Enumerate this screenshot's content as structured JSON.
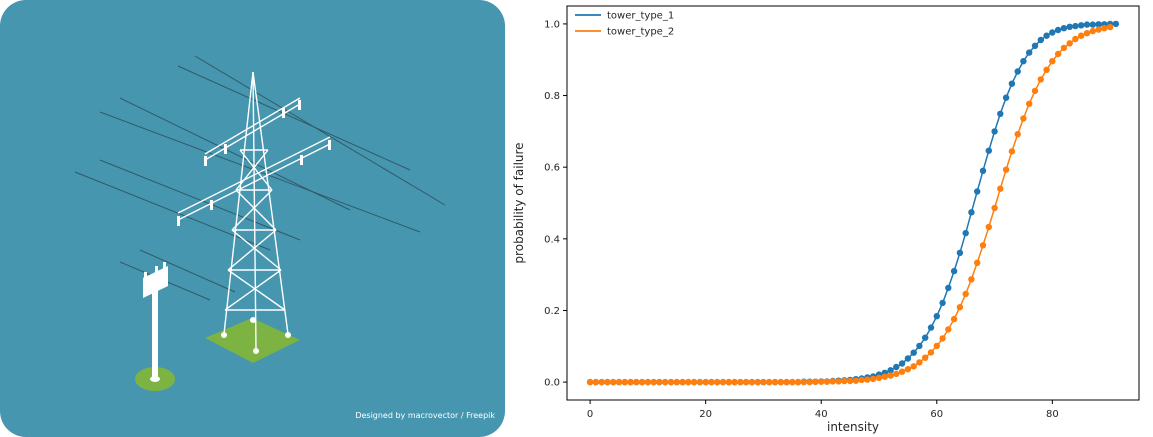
{
  "illustration": {
    "subject": "power-transmission-tower-icon",
    "credit": "Designed by macrovector / Freepik",
    "colors": {
      "background": "#4596ae",
      "tower": "#ffffff",
      "ground": "#7cb342",
      "wire": "#2f4f5e"
    }
  },
  "chart_data": {
    "type": "line",
    "title": "",
    "xlabel": "intensity",
    "ylabel": "probability of failure",
    "xlim": [
      -4,
      95
    ],
    "ylim": [
      -0.05,
      1.05
    ],
    "xticks": [
      0,
      20,
      40,
      60,
      80
    ],
    "yticks": [
      0.0,
      0.2,
      0.4,
      0.6,
      0.8,
      1.0
    ],
    "xtick_labels": [
      "0",
      "20",
      "40",
      "60",
      "80"
    ],
    "ytick_labels": [
      "0.0",
      "0.2",
      "0.4",
      "0.6",
      "0.8",
      "1.0"
    ],
    "grid": false,
    "legend": "top-left",
    "markers": true,
    "series": [
      {
        "name": "tower_type_1",
        "color": "#1f77b4",
        "x": [
          0,
          1,
          2,
          3,
          4,
          5,
          6,
          7,
          8,
          9,
          10,
          11,
          12,
          13,
          14,
          15,
          16,
          17,
          18,
          19,
          20,
          21,
          22,
          23,
          24,
          25,
          26,
          27,
          28,
          29,
          30,
          31,
          32,
          33,
          34,
          35,
          36,
          37,
          38,
          39,
          40,
          41,
          42,
          43,
          44,
          45,
          46,
          47,
          48,
          49,
          50,
          51,
          52,
          53,
          54,
          55,
          56,
          57,
          58,
          59,
          60,
          61,
          62,
          63,
          64,
          65,
          66,
          67,
          68,
          69,
          70,
          71,
          72,
          73,
          74,
          75,
          76,
          77,
          78,
          79,
          80,
          81,
          82,
          83,
          84,
          85,
          86,
          87,
          88,
          89,
          90,
          91
        ],
        "y": [
          0,
          0,
          0,
          0,
          0,
          0,
          0,
          0,
          0,
          0,
          0,
          0,
          0,
          0,
          0,
          0,
          0,
          0,
          0,
          0,
          0,
          0,
          0,
          0,
          0,
          0,
          0,
          0,
          0,
          0,
          0,
          0,
          0,
          0,
          0,
          0,
          0,
          0.001,
          0.001,
          0.001,
          0.002,
          0.002,
          0.003,
          0.004,
          0.005,
          0.006,
          0.008,
          0.01,
          0.013,
          0.016,
          0.021,
          0.026,
          0.033,
          0.042,
          0.052,
          0.066,
          0.082,
          0.101,
          0.124,
          0.152,
          0.184,
          0.221,
          0.263,
          0.31,
          0.361,
          0.416,
          0.474,
          0.532,
          0.59,
          0.646,
          0.7,
          0.749,
          0.794,
          0.833,
          0.867,
          0.896,
          0.92,
          0.939,
          0.955,
          0.967,
          0.976,
          0.983,
          0.988,
          0.992,
          0.994,
          0.996,
          0.998,
          0.998,
          0.999,
          0.999,
          1,
          1
        ]
      },
      {
        "name": "tower_type_2",
        "color": "#ff7f0e",
        "x": [
          0,
          1,
          2,
          3,
          4,
          5,
          6,
          7,
          8,
          9,
          10,
          11,
          12,
          13,
          14,
          15,
          16,
          17,
          18,
          19,
          20,
          21,
          22,
          23,
          24,
          25,
          26,
          27,
          28,
          29,
          30,
          31,
          32,
          33,
          34,
          35,
          36,
          37,
          38,
          39,
          40,
          41,
          42,
          43,
          44,
          45,
          46,
          47,
          48,
          49,
          50,
          51,
          52,
          53,
          54,
          55,
          56,
          57,
          58,
          59,
          60,
          61,
          62,
          63,
          64,
          65,
          66,
          67,
          68,
          69,
          70,
          71,
          72,
          73,
          74,
          75,
          76,
          77,
          78,
          79,
          80,
          81,
          82,
          83,
          84,
          85,
          86,
          87,
          88,
          89,
          90
        ],
        "y": [
          0,
          0,
          0,
          0,
          0,
          0,
          0,
          0,
          0,
          0,
          0,
          0,
          0,
          0,
          0,
          0,
          0,
          0,
          0,
          0,
          0,
          0,
          0,
          0,
          0,
          0,
          0,
          0,
          0,
          0,
          0,
          0,
          0,
          0,
          0,
          0,
          0,
          0,
          0,
          0.001,
          0.001,
          0.001,
          0.002,
          0.002,
          0.003,
          0.003,
          0.004,
          0.006,
          0.007,
          0.009,
          0.012,
          0.015,
          0.018,
          0.023,
          0.029,
          0.036,
          0.044,
          0.055,
          0.068,
          0.083,
          0.101,
          0.122,
          0.147,
          0.176,
          0.209,
          0.246,
          0.287,
          0.333,
          0.382,
          0.433,
          0.486,
          0.54,
          0.593,
          0.644,
          0.692,
          0.736,
          0.777,
          0.813,
          0.845,
          0.872,
          0.896,
          0.916,
          0.933,
          0.946,
          0.958,
          0.967,
          0.974,
          0.98,
          0.984,
          0.988,
          0.991
        ]
      }
    ]
  }
}
